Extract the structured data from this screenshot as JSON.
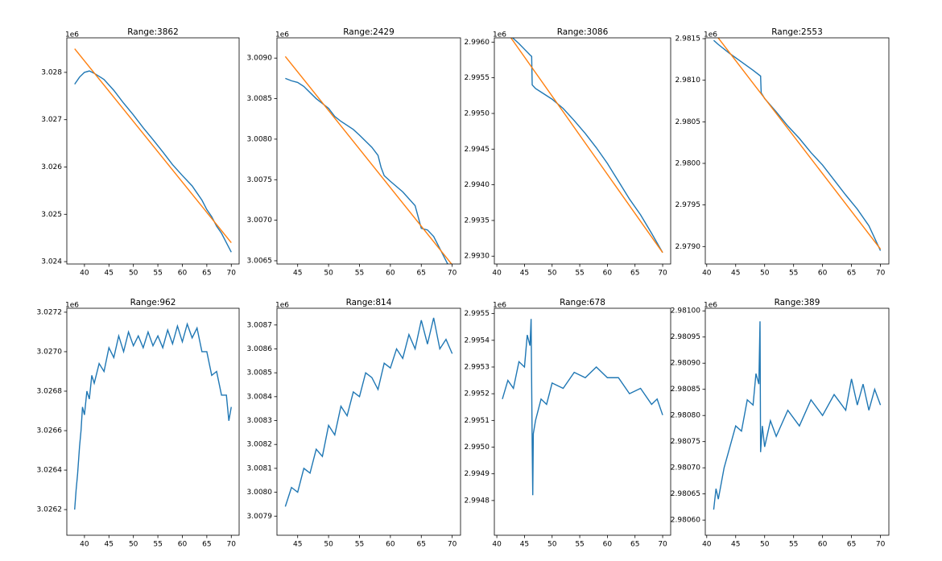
{
  "chart_data": [
    {
      "type": "line",
      "title": "Range:3862",
      "offset_label": "1e6",
      "xlim": [
        36.4,
        71.6
      ],
      "xticks": [
        40,
        45,
        50,
        55,
        60,
        65,
        70
      ],
      "ylim": [
        3.02395,
        3.02873
      ],
      "yticks": [
        3.024,
        3.025,
        3.026,
        3.027,
        3.028
      ],
      "series": [
        {
          "color": "#1f77b4",
          "x": [
            38,
            39,
            40,
            41,
            42,
            44,
            46,
            48,
            50,
            52,
            54,
            56,
            58,
            60,
            62,
            63,
            64,
            65,
            66,
            67,
            68,
            69,
            70
          ],
          "values": [
            3.02775,
            3.0279,
            3.028,
            3.02803,
            3.02798,
            3.02785,
            3.02762,
            3.02735,
            3.0271,
            3.02683,
            3.02658,
            3.02632,
            3.02605,
            3.02582,
            3.0256,
            3.02545,
            3.0253,
            3.0251,
            3.02495,
            3.02475,
            3.0246,
            3.0244,
            3.0242
          ]
        },
        {
          "color": "#ff7f0e",
          "x": [
            38,
            70
          ],
          "values": [
            3.0285,
            3.0244
          ]
        }
      ]
    },
    {
      "type": "line",
      "title": "Range:2429",
      "offset_label": "1e6",
      "xlim": [
        41.65,
        71.35
      ],
      "xticks": [
        45,
        50,
        55,
        60,
        65,
        70
      ],
      "ylim": [
        3.00646,
        3.00925
      ],
      "yticks": [
        3.0065,
        {
          "value": 3.007,
          "label": "3.0070"
        },
        3.0075,
        {
          "value": 3.008,
          "label": "3.0080"
        },
        3.0085,
        {
          "value": 3.009,
          "label": "3.0090"
        }
      ],
      "series": [
        {
          "color": "#1f77b4",
          "x": [
            43,
            44,
            45,
            46,
            48,
            50,
            51,
            52,
            54,
            55,
            57,
            58,
            58.5,
            59,
            60,
            62,
            64,
            65,
            66,
            67,
            68,
            69,
            70
          ],
          "values": [
            3.00875,
            3.00872,
            3.0087,
            3.00865,
            3.0085,
            3.00838,
            3.00828,
            3.00822,
            3.00812,
            3.00805,
            3.0079,
            3.0078,
            3.00765,
            3.00755,
            3.00748,
            3.00735,
            3.00718,
            3.0069,
            3.00688,
            3.0068,
            3.00665,
            3.0065,
            3.00635
          ]
        },
        {
          "color": "#ff7f0e",
          "x": [
            43,
            70
          ],
          "values": [
            3.00902,
            3.00645
          ]
        }
      ]
    },
    {
      "type": "line",
      "title": "Range:3086",
      "offset_label": "1e6",
      "xlim": [
        39.55,
        71.45
      ],
      "xticks": [
        40,
        45,
        50,
        55,
        60,
        65,
        70
      ],
      "ylim": [
        2.99289,
        2.99606
      ],
      "yticks": [
        {
          "value": 2.993,
          "label": "2.9930"
        },
        2.9935,
        {
          "value": 2.994,
          "label": "2.9940"
        },
        2.9945,
        {
          "value": 2.995,
          "label": "2.9950"
        },
        2.9955,
        {
          "value": 2.996,
          "label": "2.9960"
        }
      ],
      "series": [
        {
          "color": "#1f77b4",
          "x": [
            41,
            42,
            43,
            44,
            45,
            46,
            46.3,
            46.4,
            47,
            48,
            50,
            52,
            54,
            56,
            58,
            60,
            62,
            64,
            66,
            68,
            70
          ],
          "values": [
            2.99615,
            2.99612,
            2.99605,
            2.99598,
            2.9959,
            2.99582,
            2.9958,
            2.9954,
            2.99535,
            2.9953,
            2.9952,
            2.99507,
            2.9949,
            2.99472,
            2.99452,
            2.9943,
            2.99405,
            2.9938,
            2.99358,
            2.99332,
            2.99305
          ]
        },
        {
          "color": "#ff7f0e",
          "x": [
            41,
            70
          ],
          "values": [
            2.99623,
            2.99305
          ]
        }
      ]
    },
    {
      "type": "line",
      "title": "Range:2553",
      "offset_label": "1e6",
      "xlim": [
        39.75,
        71.45
      ],
      "xticks": [
        40,
        45,
        50,
        55,
        60,
        65,
        70
      ],
      "ylim": [
        2.97879,
        2.98151
      ],
      "yticks": [
        {
          "value": 2.979,
          "label": "2.9790"
        },
        2.9795,
        {
          "value": 2.98,
          "label": "2.9800"
        },
        2.9805,
        {
          "value": 2.981,
          "label": "2.9810"
        },
        2.9815
      ],
      "series": [
        {
          "color": "#1f77b4",
          "x": [
            41.2,
            42,
            44,
            46,
            48,
            49.3,
            49.4,
            50,
            52,
            54,
            56,
            58,
            60,
            62,
            64,
            66,
            68,
            70
          ],
          "values": [
            2.98148,
            2.98143,
            2.98132,
            2.98122,
            2.98112,
            2.98105,
            2.98085,
            2.98078,
            2.98062,
            2.98045,
            2.9803,
            2.98013,
            2.97998,
            2.9798,
            2.97962,
            2.97945,
            2.97925,
            2.97895
          ]
        },
        {
          "color": "#ff7f0e",
          "x": [
            41.2,
            70
          ],
          "values": [
            2.98158,
            2.97897
          ]
        }
      ]
    },
    {
      "type": "line",
      "title": "Range:962",
      "offset_label": "1e6",
      "xlim": [
        36.4,
        71.6
      ],
      "xticks": [
        40,
        45,
        50,
        55,
        60,
        65,
        70
      ],
      "ylim": [
        3.02607,
        3.02722
      ],
      "yticks": [
        3.0262,
        3.0264,
        3.0266,
        3.0268,
        {
          "value": 3.027,
          "label": "3.0270"
        },
        3.0272
      ],
      "series": [
        {
          "color": "#1f77b4",
          "x": [
            38,
            38.3,
            38.6,
            39,
            39.3,
            39.6,
            40,
            40.5,
            41,
            41.5,
            42,
            43,
            44,
            45,
            46,
            47,
            48,
            49,
            50,
            51,
            52,
            53,
            54,
            55,
            56,
            57,
            58,
            59,
            60,
            61,
            62,
            63,
            64,
            65,
            66,
            67,
            68,
            69,
            69.5,
            70
          ],
          "values": [
            3.0262,
            3.0263,
            3.02638,
            3.02652,
            3.0266,
            3.02672,
            3.02668,
            3.0268,
            3.02676,
            3.02688,
            3.02684,
            3.02694,
            3.0269,
            3.02702,
            3.02697,
            3.02708,
            3.027,
            3.0271,
            3.02703,
            3.02708,
            3.02702,
            3.0271,
            3.02703,
            3.02708,
            3.02702,
            3.02711,
            3.02704,
            3.02713,
            3.02705,
            3.02714,
            3.02707,
            3.02712,
            3.027,
            3.027,
            3.02688,
            3.0269,
            3.02678,
            3.02678,
            3.02665,
            3.02672
          ]
        }
      ]
    },
    {
      "type": "line",
      "title": "Range:814",
      "offset_label": "1e6",
      "xlim": [
        41.65,
        71.35
      ],
      "xticks": [
        45,
        50,
        55,
        60,
        65,
        70
      ],
      "ylim": [
        3.00782,
        3.00877
      ],
      "yticks": [
        3.0079,
        {
          "value": 3.008,
          "label": "3.0080"
        },
        3.0081,
        3.0082,
        3.0083,
        3.0084,
        3.0085,
        3.0086,
        3.0087
      ],
      "series": [
        {
          "color": "#1f77b4",
          "x": [
            43,
            44,
            45,
            46,
            47,
            48,
            49,
            50,
            51,
            52,
            53,
            54,
            55,
            56,
            57,
            58,
            59,
            60,
            61,
            62,
            63,
            64,
            65,
            66,
            67,
            68,
            69,
            70
          ],
          "values": [
            3.00794,
            3.00802,
            3.008,
            3.0081,
            3.00808,
            3.00818,
            3.00815,
            3.00828,
            3.00824,
            3.00836,
            3.00832,
            3.00842,
            3.0084,
            3.0085,
            3.00848,
            3.00843,
            3.00854,
            3.00852,
            3.0086,
            3.00856,
            3.00866,
            3.0086,
            3.00872,
            3.00862,
            3.00873,
            3.0086,
            3.00864,
            3.00858
          ]
        }
      ]
    },
    {
      "type": "line",
      "title": "Range:678",
      "offset_label": "1e6",
      "xlim": [
        39.55,
        71.45
      ],
      "xticks": [
        40,
        45,
        50,
        55,
        60,
        65,
        70
      ],
      "ylim": [
        2.99467,
        2.99552
      ],
      "yticks": [
        2.9948,
        2.9949,
        {
          "value": 2.995,
          "label": "2.9950"
        },
        2.9951,
        2.9952,
        2.9953,
        2.9954,
        2.9955
      ],
      "series": [
        {
          "color": "#1f77b4",
          "x": [
            41,
            42,
            43,
            44,
            45,
            45.5,
            46,
            46.2,
            46.4,
            46.5,
            46.6,
            47,
            48,
            49,
            50,
            52,
            54,
            56,
            58,
            60,
            62,
            64,
            66,
            68,
            69,
            70
          ],
          "values": [
            2.99518,
            2.99525,
            2.99522,
            2.99532,
            2.9953,
            2.99542,
            2.99538,
            2.99548,
            2.995,
            2.99482,
            2.99505,
            2.9951,
            2.99518,
            2.99516,
            2.99524,
            2.99522,
            2.99528,
            2.99526,
            2.9953,
            2.99526,
            2.99526,
            2.9952,
            2.99522,
            2.99516,
            2.99518,
            2.99512
          ]
        }
      ]
    },
    {
      "type": "line",
      "title": "Range:389",
      "offset_label": "1e6",
      "xlim": [
        39.75,
        71.45
      ],
      "xticks": [
        40,
        45,
        50,
        55,
        60,
        65,
        70
      ],
      "ylim": [
        2.980571,
        2.981005
      ],
      "yticks": [
        {
          "value": 2.9806,
          "label": "2.98060"
        },
        2.98065,
        {
          "value": 2.9807,
          "label": "2.98070"
        },
        2.98075,
        {
          "value": 2.9808,
          "label": "2.98080"
        },
        2.98085,
        {
          "value": 2.9809,
          "label": "2.98090"
        },
        2.98095,
        {
          "value": 2.981,
          "label": "2.98100"
        }
      ],
      "series": [
        {
          "color": "#1f77b4",
          "x": [
            41.2,
            41.6,
            42,
            43,
            44,
            45,
            46,
            47,
            48,
            48.5,
            49,
            49.2,
            49.3,
            49.6,
            50,
            51,
            52,
            54,
            56,
            58,
            60,
            62,
            64,
            65,
            66,
            67,
            68,
            69,
            70
          ],
          "values": [
            2.98062,
            2.98066,
            2.98064,
            2.9807,
            2.98074,
            2.98078,
            2.98077,
            2.98083,
            2.98082,
            2.98088,
            2.98086,
            2.98098,
            2.98073,
            2.98078,
            2.98074,
            2.98079,
            2.98076,
            2.98081,
            2.98078,
            2.98083,
            2.9808,
            2.98084,
            2.98081,
            2.98087,
            2.98082,
            2.98086,
            2.98081,
            2.98085,
            2.98082
          ]
        }
      ]
    }
  ]
}
